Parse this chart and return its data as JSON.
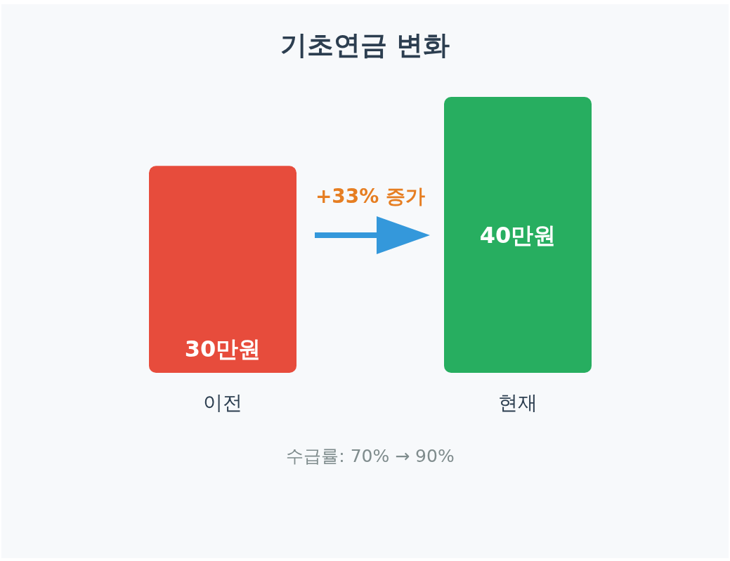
{
  "chart_data": {
    "type": "bar",
    "title": "기초연금 변화",
    "categories": [
      "이전",
      "현재"
    ],
    "values": [
      30,
      40
    ],
    "colors": [
      "#e74c3c",
      "#27ae60"
    ],
    "value_labels": [
      "30만원",
      "40만원"
    ],
    "tick_labels": "x",
    "annotations": [
      "+33% 증가",
      "수급률: 70% → 90%"
    ]
  }
}
